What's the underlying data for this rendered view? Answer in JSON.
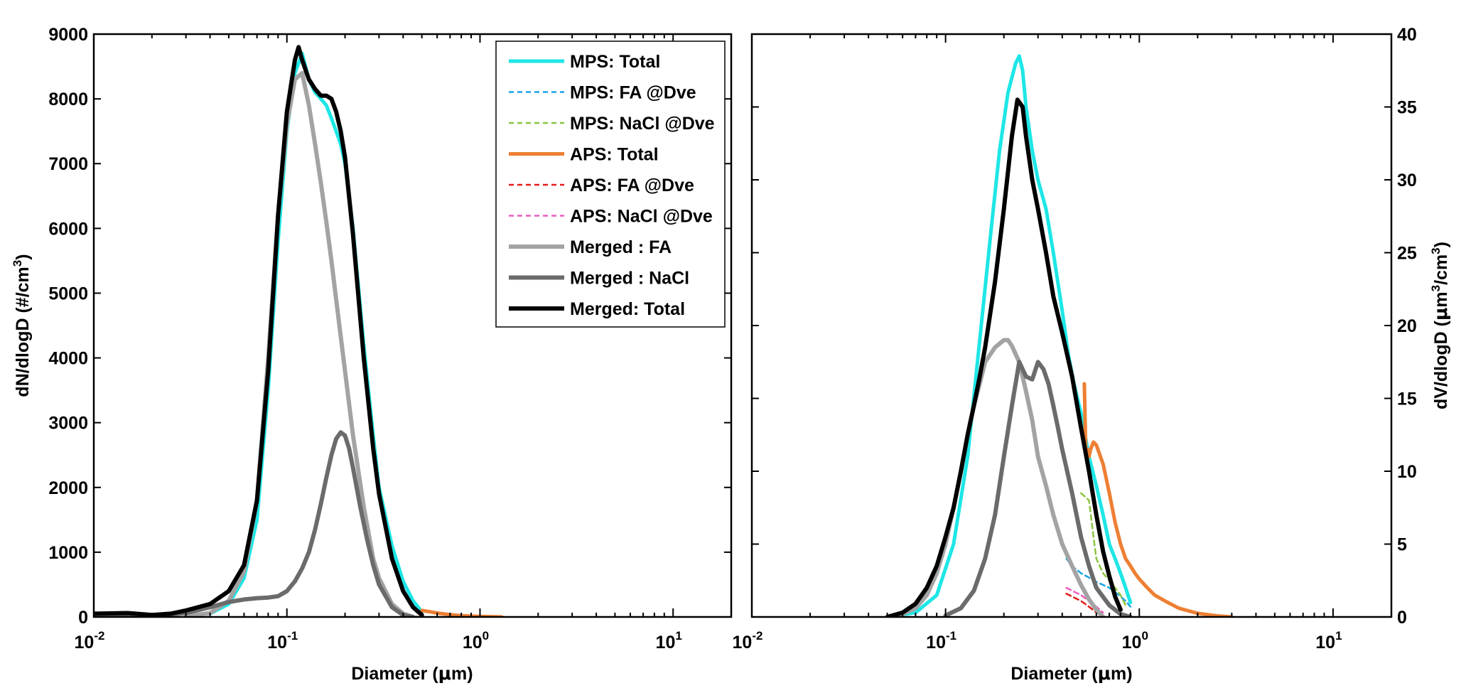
{
  "chart_data": [
    {
      "type": "line",
      "xscale": "log",
      "xlim": [
        0.01,
        20
      ],
      "ylim": [
        0,
        9000
      ],
      "xlabel_main": "Diameter (",
      "xlabel_unit": "m)",
      "xlabel_mu": "μ",
      "ylabel_main": "dN/dlogD (#/cm",
      "ylabel_sup": "3",
      "ylabel_end": ")",
      "yticks": [
        0,
        1000,
        2000,
        3000,
        4000,
        5000,
        6000,
        7000,
        8000,
        9000
      ],
      "ytick_labels": [
        "0",
        "1000",
        "2000",
        "3000",
        "4000",
        "5000",
        "6000",
        "7000",
        "8000",
        "9000"
      ],
      "xticks": [
        {
          "value": 0.01,
          "base": "10",
          "exp": "-2"
        },
        {
          "value": 0.1,
          "base": "10",
          "exp": "-1"
        },
        {
          "value": 1,
          "base": "10",
          "exp": "0"
        },
        {
          "value": 10,
          "base": "10",
          "exp": "1"
        }
      ],
      "legend_position": "top-right",
      "legend": [
        {
          "label": "MPS: Total",
          "color": "#1ee6e6",
          "dash": false,
          "width": 5
        },
        {
          "label": "MPS: FA @Dve",
          "color": "#1aa3e8",
          "dash": true,
          "width": 2.5
        },
        {
          "label": "MPS: NaCl @Dve",
          "color": "#8bc43f",
          "dash": true,
          "width": 2.5
        },
        {
          "label": "APS: Total",
          "color": "#ee7f33",
          "dash": false,
          "width": 5
        },
        {
          "label": "APS: FA @Dve",
          "color": "#e31a1a",
          "dash": true,
          "width": 2.5
        },
        {
          "label": "APS: NaCl @Dve",
          "color": "#ee5bc0",
          "dash": true,
          "width": 2.5
        },
        {
          "label": "Merged : FA",
          "color": "#a3a3a3",
          "dash": false,
          "width": 6
        },
        {
          "label": "Merged : NaCl",
          "color": "#6b6b6b",
          "dash": false,
          "width": 6
        },
        {
          "label": "Merged: Total",
          "color": "#000000",
          "dash": false,
          "width": 6
        }
      ],
      "series": [
        {
          "color": "#1ee6e6",
          "dash": false,
          "width": 5,
          "x": [
            0.04,
            0.05,
            0.06,
            0.07,
            0.08,
            0.09,
            0.1,
            0.11,
            0.12,
            0.13,
            0.14,
            0.15,
            0.16,
            0.17,
            0.18,
            0.19,
            0.2,
            0.22,
            0.25,
            0.28,
            0.3,
            0.35,
            0.4,
            0.45,
            0.5
          ],
          "y": [
            50,
            200,
            600,
            1500,
            3500,
            5800,
            7500,
            8400,
            8700,
            8300,
            8100,
            8000,
            7900,
            7700,
            7500,
            7300,
            7000,
            6000,
            4200,
            2800,
            2000,
            1100,
            550,
            250,
            80
          ]
        },
        {
          "color": "#1aa3e8",
          "dash": true,
          "width": 2.5,
          "x": [
            0.42,
            0.45,
            0.5
          ],
          "y": [
            15,
            8,
            0
          ]
        },
        {
          "color": "#8bc43f",
          "dash": true,
          "width": 2.5,
          "x": [
            0.42,
            0.45,
            0.5
          ],
          "y": [
            25,
            12,
            0
          ]
        },
        {
          "color": "#ee7f33",
          "dash": false,
          "width": 5,
          "x": [
            0.5,
            0.55,
            0.6,
            0.7,
            0.8,
            1.0,
            1.3
          ],
          "y": [
            100,
            80,
            60,
            35,
            20,
            8,
            0
          ]
        },
        {
          "color": "#e31a1a",
          "dash": true,
          "width": 2.5,
          "x": [
            0.42,
            0.45,
            0.5
          ],
          "y": [
            6,
            3,
            0
          ]
        },
        {
          "color": "#ee5bc0",
          "dash": true,
          "width": 2.5,
          "x": [
            0.42,
            0.45,
            0.5
          ],
          "y": [
            8,
            4,
            0
          ]
        },
        {
          "color": "#a3a3a3",
          "dash": false,
          "width": 6,
          "x": [
            0.03,
            0.04,
            0.05,
            0.06,
            0.07,
            0.08,
            0.09,
            0.1,
            0.11,
            0.12,
            0.13,
            0.14,
            0.15,
            0.16,
            0.17,
            0.18,
            0.2,
            0.22,
            0.25,
            0.28,
            0.3,
            0.35,
            0.4,
            0.45
          ],
          "y": [
            10,
            60,
            250,
            700,
            1800,
            4000,
            6200,
            7600,
            8300,
            8400,
            7900,
            7300,
            6700,
            6100,
            5500,
            4900,
            3800,
            2800,
            1700,
            900,
            600,
            200,
            50,
            0
          ]
        },
        {
          "color": "#6b6b6b",
          "dash": false,
          "width": 6,
          "x": [
            0.01,
            0.02,
            0.03,
            0.04,
            0.05,
            0.06,
            0.07,
            0.08,
            0.09,
            0.1,
            0.11,
            0.12,
            0.13,
            0.14,
            0.15,
            0.16,
            0.17,
            0.18,
            0.19,
            0.2,
            0.21,
            0.22,
            0.24,
            0.26,
            0.28,
            0.3,
            0.35,
            0.4,
            0.45
          ],
          "y": [
            0,
            10,
            60,
            150,
            230,
            270,
            290,
            300,
            320,
            400,
            550,
            750,
            1000,
            1350,
            1750,
            2150,
            2500,
            2750,
            2850,
            2800,
            2600,
            2300,
            1700,
            1200,
            800,
            500,
            150,
            30,
            0
          ]
        },
        {
          "color": "#000000",
          "dash": false,
          "width": 6,
          "x": [
            0.01,
            0.015,
            0.02,
            0.025,
            0.03,
            0.04,
            0.05,
            0.06,
            0.07,
            0.08,
            0.09,
            0.1,
            0.11,
            0.115,
            0.12,
            0.13,
            0.14,
            0.15,
            0.16,
            0.17,
            0.18,
            0.19,
            0.2,
            0.22,
            0.25,
            0.28,
            0.3,
            0.35,
            0.4,
            0.45,
            0.5
          ],
          "y": [
            50,
            60,
            30,
            50,
            100,
            200,
            400,
            800,
            1800,
            3800,
            6200,
            7800,
            8600,
            8800,
            8600,
            8300,
            8150,
            8050,
            8050,
            8000,
            7800,
            7500,
            7100,
            5900,
            4000,
            2600,
            1900,
            900,
            400,
            150,
            30
          ]
        }
      ]
    },
    {
      "type": "line",
      "xscale": "log",
      "xlim": [
        0.01,
        20
      ],
      "ylim": [
        0,
        40
      ],
      "xlabel_main": "Diameter (",
      "xlabel_unit": "m)",
      "xlabel_mu": "μ",
      "ylabel_main": "dV/dlogD (",
      "ylabel_mu": "μ",
      "ylabel_mid": "m",
      "ylabel_sup1": "3",
      "ylabel_slash": "/cm",
      "ylabel_sup2": "3",
      "ylabel_end": ")",
      "yaxis_side": "right",
      "yticks": [
        0,
        5,
        10,
        15,
        20,
        25,
        30,
        35,
        40
      ],
      "ytick_labels": [
        "0",
        "5",
        "10",
        "15",
        "20",
        "25",
        "30",
        "35",
        "40"
      ],
      "xticks": [
        {
          "value": 0.01,
          "base": "10",
          "exp": "-2"
        },
        {
          "value": 0.1,
          "base": "10",
          "exp": "-1"
        },
        {
          "value": 1,
          "base": "10",
          "exp": "0"
        },
        {
          "value": 10,
          "base": "10",
          "exp": "1"
        }
      ],
      "series": [
        {
          "color": "#1ee6e6",
          "dash": false,
          "width": 5,
          "x": [
            0.05,
            0.07,
            0.09,
            0.11,
            0.13,
            0.15,
            0.17,
            0.19,
            0.21,
            0.23,
            0.24,
            0.25,
            0.26,
            0.28,
            0.3,
            0.33,
            0.36,
            0.4,
            0.43,
            0.46,
            0.5,
            0.55,
            0.6,
            0.65,
            0.7,
            0.75,
            0.8,
            0.85,
            0.9
          ],
          "y": [
            0,
            0.3,
            1.5,
            5,
            11,
            19,
            26,
            32,
            36,
            38,
            38.5,
            37.5,
            35,
            32,
            30,
            28,
            25,
            21,
            18,
            16,
            14,
            11,
            9,
            7,
            5,
            4,
            3,
            2,
            1
          ]
        },
        {
          "color": "#1aa3e8",
          "dash": true,
          "width": 2.5,
          "x": [
            0.42,
            0.45,
            0.5,
            0.55,
            0.6,
            0.65,
            0.7,
            0.75,
            0.8,
            0.85,
            0.9
          ],
          "y": [
            4,
            3.5,
            3,
            2.7,
            2.4,
            2.2,
            2,
            1.7,
            1.4,
            1.1,
            0.7
          ]
        },
        {
          "color": "#8bc43f",
          "dash": true,
          "width": 2.5,
          "x": [
            0.5,
            0.52,
            0.55,
            0.58,
            0.6,
            0.65,
            0.7,
            0.75,
            0.8,
            0.85
          ],
          "y": [
            8.5,
            8.3,
            8,
            5.5,
            4,
            3,
            2.5,
            2,
            1.5,
            0.8
          ]
        },
        {
          "color": "#ee7f33",
          "dash": false,
          "width": 5,
          "x": [
            0.52,
            0.53,
            0.54,
            0.55,
            0.56,
            0.58,
            0.6,
            0.65,
            0.7,
            0.75,
            0.8,
            0.85,
            0.9,
            0.95,
            1.0,
            1.1,
            1.2,
            1.4,
            1.6,
            2.0,
            2.5,
            3.0
          ],
          "y": [
            16,
            11,
            11.5,
            11,
            11.5,
            12,
            11.8,
            10.5,
            8.5,
            6.5,
            5,
            4,
            3.5,
            3,
            2.6,
            2,
            1.5,
            1,
            0.6,
            0.25,
            0.08,
            0
          ]
        },
        {
          "color": "#e31a1a",
          "dash": true,
          "width": 2.5,
          "x": [
            0.42,
            0.45,
            0.5,
            0.55,
            0.6
          ],
          "y": [
            1.6,
            1.4,
            1.1,
            0.7,
            0.3
          ]
        },
        {
          "color": "#ee5bc0",
          "dash": true,
          "width": 2.5,
          "x": [
            0.42,
            0.45,
            0.5,
            0.55,
            0.6,
            0.65
          ],
          "y": [
            2,
            1.8,
            1.5,
            1.1,
            0.7,
            0.3
          ]
        },
        {
          "color": "#a3a3a3",
          "dash": false,
          "width": 6,
          "x": [
            0.05,
            0.06,
            0.07,
            0.08,
            0.09,
            0.1,
            0.11,
            0.12,
            0.13,
            0.14,
            0.15,
            0.16,
            0.18,
            0.2,
            0.21,
            0.22,
            0.24,
            0.26,
            0.28,
            0.3,
            0.33,
            0.36,
            0.4,
            0.45,
            0.5,
            0.55,
            0.6,
            0.65
          ],
          "y": [
            0,
            0.2,
            0.6,
            1.5,
            3,
            5,
            7.5,
            10,
            12.5,
            14.5,
            16,
            17.5,
            18.5,
            19,
            19,
            18.6,
            17.5,
            15.5,
            13.5,
            11,
            9,
            7,
            5,
            3.5,
            2.2,
            1.2,
            0.5,
            0
          ]
        },
        {
          "color": "#6b6b6b",
          "dash": false,
          "width": 6,
          "x": [
            0.1,
            0.12,
            0.14,
            0.16,
            0.18,
            0.2,
            0.22,
            0.24,
            0.26,
            0.28,
            0.3,
            0.32,
            0.34,
            0.36,
            0.38,
            0.4,
            0.45,
            0.5,
            0.55,
            0.6,
            0.7,
            0.8,
            0.9
          ],
          "y": [
            0.1,
            0.6,
            1.8,
            4,
            7,
            11,
            14.5,
            17.5,
            16.5,
            16.3,
            17.5,
            17,
            16,
            14.5,
            13,
            11.5,
            8.5,
            5.5,
            3.5,
            2,
            0.8,
            0.2,
            0
          ]
        },
        {
          "color": "#000000",
          "dash": false,
          "width": 6,
          "x": [
            0.05,
            0.06,
            0.07,
            0.08,
            0.09,
            0.1,
            0.11,
            0.12,
            0.13,
            0.14,
            0.15,
            0.16,
            0.18,
            0.2,
            0.22,
            0.235,
            0.25,
            0.26,
            0.28,
            0.3,
            0.33,
            0.36,
            0.4,
            0.45,
            0.5,
            0.55,
            0.6,
            0.65,
            0.7,
            0.75,
            0.8
          ],
          "y": [
            0,
            0.3,
            0.9,
            2,
            3.5,
            5.5,
            7.5,
            10,
            12.5,
            14.5,
            16.5,
            18.5,
            23,
            28,
            33,
            35.5,
            35,
            33,
            30,
            28,
            25,
            22,
            19.5,
            16.5,
            13,
            10,
            7,
            4.5,
            2.8,
            1.4,
            0.5
          ]
        }
      ]
    }
  ]
}
